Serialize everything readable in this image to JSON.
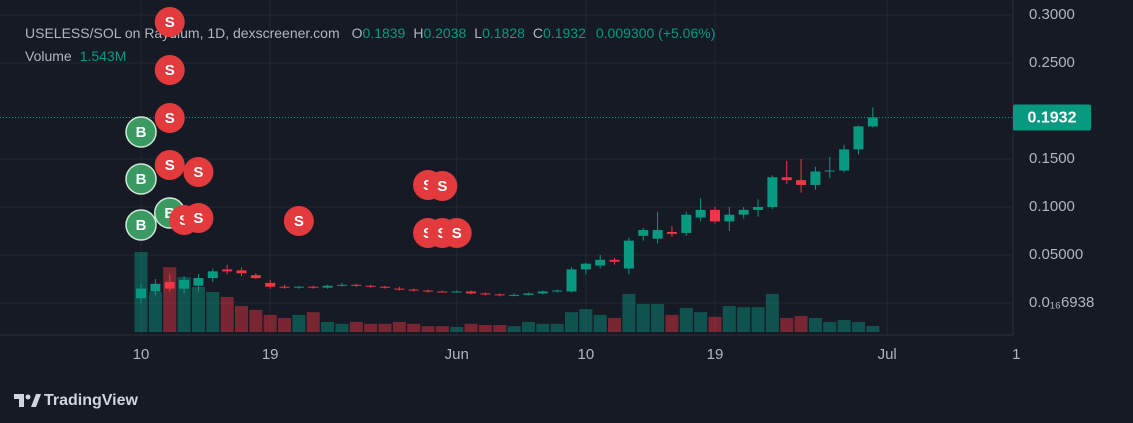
{
  "chart_data": {
    "type": "candlestick",
    "symbol": "USELESS/SOL on Raydium, 1D, dexscreener.com",
    "ohlc_labels": [
      "O",
      "H",
      "L",
      "C"
    ],
    "change": "0.009300 (+5.06%)",
    "volume_title": "Volume",
    "volume_value_label": "1.543M",
    "brand": "TradingView",
    "up_color": "#089981",
    "down_color": "#f23645",
    "x": [
      0,
      1,
      2,
      3,
      4,
      5,
      6,
      7,
      8,
      9,
      10,
      11,
      12,
      13,
      14,
      15,
      16,
      17,
      18,
      19,
      20,
      21,
      22,
      23,
      24,
      25,
      26,
      27,
      28,
      29,
      30,
      31,
      32,
      33,
      34,
      35,
      36,
      37,
      38,
      39,
      40,
      41,
      42,
      43,
      44,
      45,
      46,
      47,
      48,
      49,
      50,
      51
    ],
    "ohlc": [
      [
        0.005,
        0.02,
        0.0,
        0.015
      ],
      [
        0.012,
        0.025,
        0.008,
        0.02
      ],
      [
        0.022,
        0.03,
        0.012,
        0.015
      ],
      [
        0.015,
        0.028,
        0.01,
        0.024
      ],
      [
        0.018,
        0.03,
        0.012,
        0.026
      ],
      [
        0.026,
        0.036,
        0.022,
        0.033
      ],
      [
        0.035,
        0.04,
        0.03,
        0.033
      ],
      [
        0.034,
        0.037,
        0.028,
        0.031
      ],
      [
        0.029,
        0.031,
        0.025,
        0.026
      ],
      [
        0.021,
        0.024,
        0.015,
        0.017
      ],
      [
        0.017,
        0.019,
        0.015,
        0.016
      ],
      [
        0.016,
        0.018,
        0.015,
        0.017
      ],
      [
        0.017,
        0.018,
        0.015,
        0.016
      ],
      [
        0.016,
        0.019,
        0.015,
        0.018
      ],
      [
        0.018,
        0.021,
        0.017,
        0.019
      ],
      [
        0.019,
        0.02,
        0.017,
        0.018
      ],
      [
        0.018,
        0.019,
        0.016,
        0.017
      ],
      [
        0.017,
        0.018,
        0.015,
        0.016
      ],
      [
        0.015,
        0.017,
        0.013,
        0.014
      ],
      [
        0.014,
        0.015,
        0.012,
        0.013
      ],
      [
        0.013,
        0.014,
        0.011,
        0.012
      ],
      [
        0.012,
        0.013,
        0.011,
        0.0115
      ],
      [
        0.0115,
        0.013,
        0.011,
        0.012
      ],
      [
        0.012,
        0.013,
        0.009,
        0.01
      ],
      [
        0.01,
        0.011,
        0.008,
        0.009
      ],
      [
        0.009,
        0.01,
        0.007,
        0.008
      ],
      [
        0.008,
        0.01,
        0.007,
        0.0085
      ],
      [
        0.0085,
        0.011,
        0.008,
        0.01
      ],
      [
        0.01,
        0.013,
        0.009,
        0.012
      ],
      [
        0.012,
        0.014,
        0.011,
        0.013
      ],
      [
        0.012,
        0.037,
        0.011,
        0.035
      ],
      [
        0.035,
        0.042,
        0.03,
        0.041
      ],
      [
        0.039,
        0.05,
        0.036,
        0.045
      ],
      [
        0.045,
        0.047,
        0.04,
        0.043
      ],
      [
        0.036,
        0.068,
        0.03,
        0.065
      ],
      [
        0.07,
        0.078,
        0.065,
        0.076
      ],
      [
        0.067,
        0.095,
        0.062,
        0.076
      ],
      [
        0.074,
        0.08,
        0.069,
        0.072
      ],
      [
        0.073,
        0.095,
        0.07,
        0.092
      ],
      [
        0.089,
        0.109,
        0.085,
        0.097
      ],
      [
        0.097,
        0.1,
        0.083,
        0.085
      ],
      [
        0.085,
        0.1,
        0.075,
        0.092
      ],
      [
        0.092,
        0.1,
        0.088,
        0.097
      ],
      [
        0.097,
        0.108,
        0.09,
        0.1
      ],
      [
        0.1,
        0.133,
        0.098,
        0.131
      ],
      [
        0.131,
        0.148,
        0.124,
        0.128
      ],
      [
        0.128,
        0.15,
        0.115,
        0.123
      ],
      [
        0.123,
        0.142,
        0.118,
        0.137
      ],
      [
        0.137,
        0.152,
        0.13,
        0.138
      ],
      [
        0.138,
        0.165,
        0.136,
        0.16
      ],
      [
        0.16,
        0.185,
        0.155,
        0.184
      ],
      [
        0.1839,
        0.2038,
        0.1828,
        0.1932
      ]
    ],
    "volume": [
      20.6,
      10.3,
      16.7,
      14.1,
      11.6,
      10.3,
      9.0,
      6.7,
      5.7,
      4.4,
      3.6,
      4.4,
      5.1,
      2.6,
      2.1,
      2.6,
      2.1,
      2.1,
      2.6,
      2.1,
      1.5,
      1.5,
      1.3,
      2.1,
      1.8,
      1.8,
      1.5,
      2.6,
      2.1,
      2.1,
      5.1,
      5.9,
      4.4,
      3.6,
      9.8,
      7.2,
      7.2,
      4.4,
      6.2,
      5.1,
      3.9,
      6.7,
      6.4,
      6.4,
      9.8,
      3.6,
      4.1,
      3.6,
      2.6,
      3.1,
      2.6,
      1.543
    ],
    "markers": [
      {
        "text": "S",
        "x": 2
      },
      {
        "text": "S",
        "x": 2
      },
      {
        "text": "S",
        "x": 2
      },
      {
        "text": "B",
        "x": 0
      },
      {
        "text": "S",
        "x": 2
      },
      {
        "text": "S",
        "x": 4
      },
      {
        "text": "B",
        "x": 0
      },
      {
        "text": "B",
        "x": 2
      },
      {
        "text": "S",
        "x": 3
      },
      {
        "text": "S",
        "x": 4
      },
      {
        "text": "B",
        "x": 0
      },
      {
        "text": "S",
        "x": 11
      },
      {
        "text": "S",
        "x": 20
      },
      {
        "text": "S",
        "x": 21
      },
      {
        "text": "S",
        "x": 20
      },
      {
        "text": "S",
        "x": 21
      },
      {
        "text": "S",
        "x": 22
      }
    ],
    "xlim": [
      -9.83,
      60.77
    ],
    "xticks": [
      {
        "value": 0,
        "label": "10"
      },
      {
        "value": 9,
        "label": "19"
      },
      {
        "value": 22,
        "label": "Jun"
      },
      {
        "value": 31,
        "label": "10"
      },
      {
        "value": 40,
        "label": "19"
      },
      {
        "value": 52,
        "label": "Jul"
      },
      {
        "value": 61,
        "label": "1"
      }
    ],
    "ylim": [
      -0.0333,
      0.3156
    ],
    "yticks": [
      {
        "value": 0.3,
        "label": "0.3000"
      },
      {
        "value": 0.25,
        "label": "0.2500"
      },
      {
        "value": 0.15,
        "label": "0.1500"
      },
      {
        "value": 0.1,
        "label": "0.1000"
      },
      {
        "value": 0.05,
        "label": "0.05000"
      },
      {
        "value": 6.938e-17,
        "label": "0.0₁₆6938"
      }
    ],
    "grid": true
  }
}
